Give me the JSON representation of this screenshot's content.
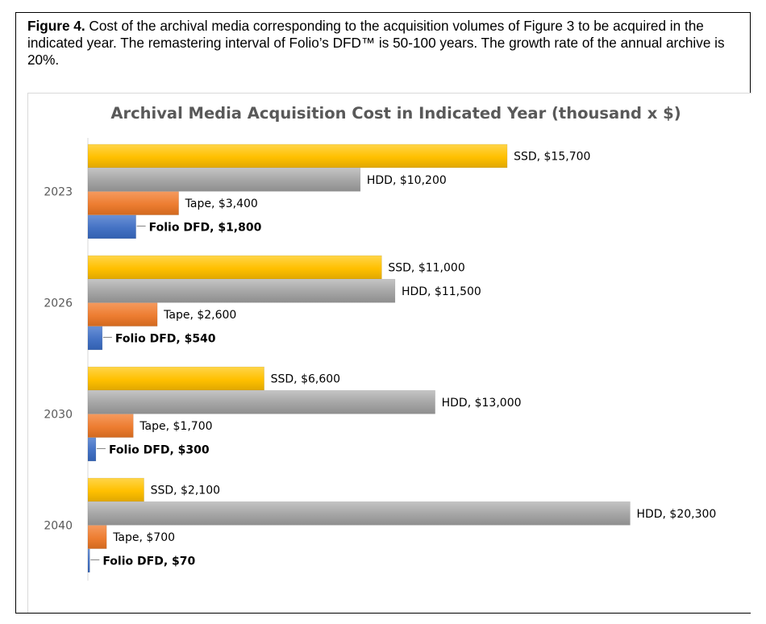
{
  "figure": {
    "label": "Figure 4.",
    "caption": "Cost of the archival media corresponding to the acquisition volumes of Figure 3 to be acquired in the indicated year.  The remastering interval of Folio’s DFD™ is 50-100 years.  The growth rate of the annual archive is 20%."
  },
  "chart_data": {
    "type": "bar",
    "orientation": "horizontal",
    "title": "Archival Media Acquisition Cost in Indicated Year (thousand x $)",
    "xlabel": "",
    "ylabel": "",
    "categories": [
      "2023",
      "2026",
      "2030",
      "2040"
    ],
    "xlim": [
      0,
      22400
    ],
    "grid": false,
    "legend": "none",
    "series": [
      {
        "name": "SSD",
        "color": "#ffc000",
        "values": [
          15700,
          11000,
          6600,
          2100
        ],
        "labels": [
          "SSD,  $15,700",
          "SSD,  $11,000",
          "SSD,  $6,600",
          "SSD,  $2,100"
        ]
      },
      {
        "name": "HDD",
        "color": "#a5a5a5",
        "values": [
          10200,
          11500,
          13000,
          20300
        ],
        "labels": [
          "HDD,  $10,200",
          "HDD,  $11,500",
          "HDD,  $13,000",
          "HDD,  $20,300"
        ]
      },
      {
        "name": "Tape",
        "color": "#ed7d31",
        "values": [
          3400,
          2600,
          1700,
          700
        ],
        "labels": [
          "Tape,  $3,400",
          "Tape,  $2,600",
          "Tape,  $1,700",
          "Tape,  $700"
        ]
      },
      {
        "name": "Folio DFD",
        "color": "#4472c4",
        "values": [
          1800,
          540,
          300,
          70
        ],
        "labels": [
          "Folio DFD, $1,800",
          "Folio DFD,  $540",
          "Folio DFD,  $300",
          "Folio DFD,  $70"
        ],
        "bold_labels": true
      }
    ]
  }
}
